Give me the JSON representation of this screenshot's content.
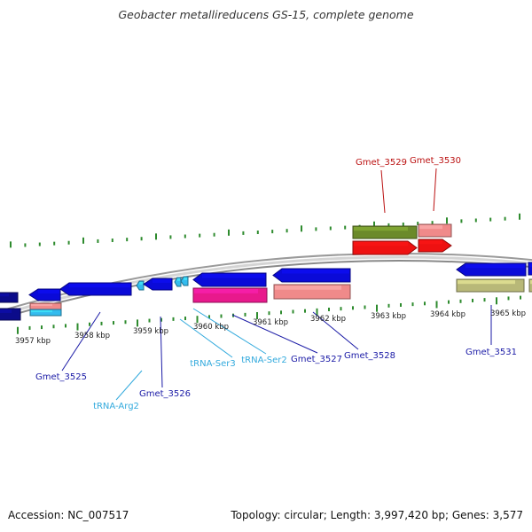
{
  "title": "Geobacter metallireducens GS-15, complete genome",
  "footer": {
    "accession": "Accession: NC_007517",
    "topology": "Topology: circular; Length: 3,997,420 bp; Genes: 3,577"
  },
  "colors": {
    "backbone": "#b3b3b3",
    "tick": "#2e8b2e",
    "gene_blue": "#0a0ad8",
    "gene_navy": "#0b0b8a",
    "trna": "#33bbee",
    "magenta": "#e8198c",
    "salmon": "#f08a8a",
    "olive": "#6b8a2a",
    "red": "#ee1111",
    "khaki": "#b8b878",
    "label_blue": "#1a1aa6",
    "label_cyan": "#33aadd",
    "label_red": "#bb1111"
  },
  "scale_labels": [
    "3957 kbp",
    "3958 kbp",
    "3959 kbp",
    "3960 kbp",
    "3961 kbp",
    "3962 kbp",
    "3963 kbp",
    "3964 kbp",
    "3965 kbp"
  ],
  "feature_labels": [
    "Gmet_3525",
    "tRNA-Arg2",
    "Gmet_3526",
    "tRNA-Ser3",
    "tRNA-Ser2",
    "Gmet_3527",
    "Gmet_3528",
    "Gmet_3531",
    "Gmet_3529",
    "Gmet_3530"
  ]
}
